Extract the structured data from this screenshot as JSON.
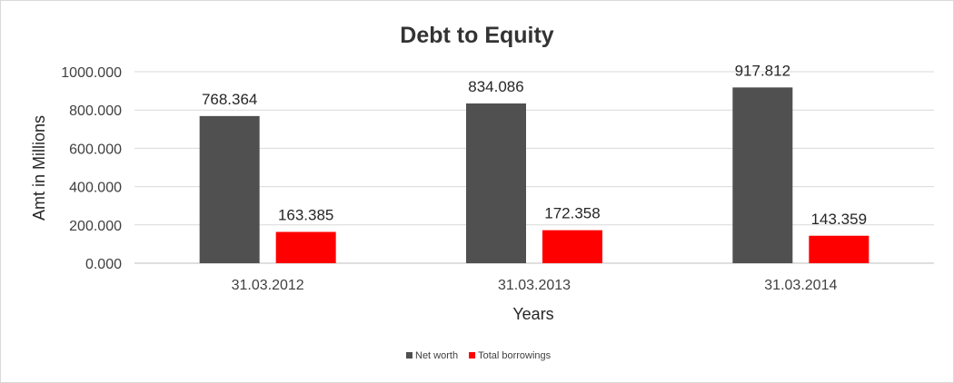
{
  "chart_data": {
    "type": "bar",
    "title": "Debt to Equity",
    "xlabel": "Years",
    "ylabel": "Amt in Millions",
    "categories": [
      "31.03.2012",
      "31.03.2013",
      "31.03.2014"
    ],
    "series": [
      {
        "name": "Net worth",
        "values": [
          768.364,
          834.086,
          917.812
        ],
        "color": "#505050"
      },
      {
        "name": "Total borrowings",
        "values": [
          163.385,
          172.358,
          143.359
        ],
        "color": "#ff0000"
      }
    ],
    "ylim": [
      0,
      1000
    ],
    "yticks": [
      "0.000",
      "200.000",
      "400.000",
      "600.000",
      "800.000",
      "1000.000"
    ],
    "data_labels": [
      [
        "768.364",
        "834.086",
        "917.812"
      ],
      [
        "163.385",
        "172.358",
        "143.359"
      ]
    ],
    "grid": true,
    "legend_position": "bottom"
  }
}
